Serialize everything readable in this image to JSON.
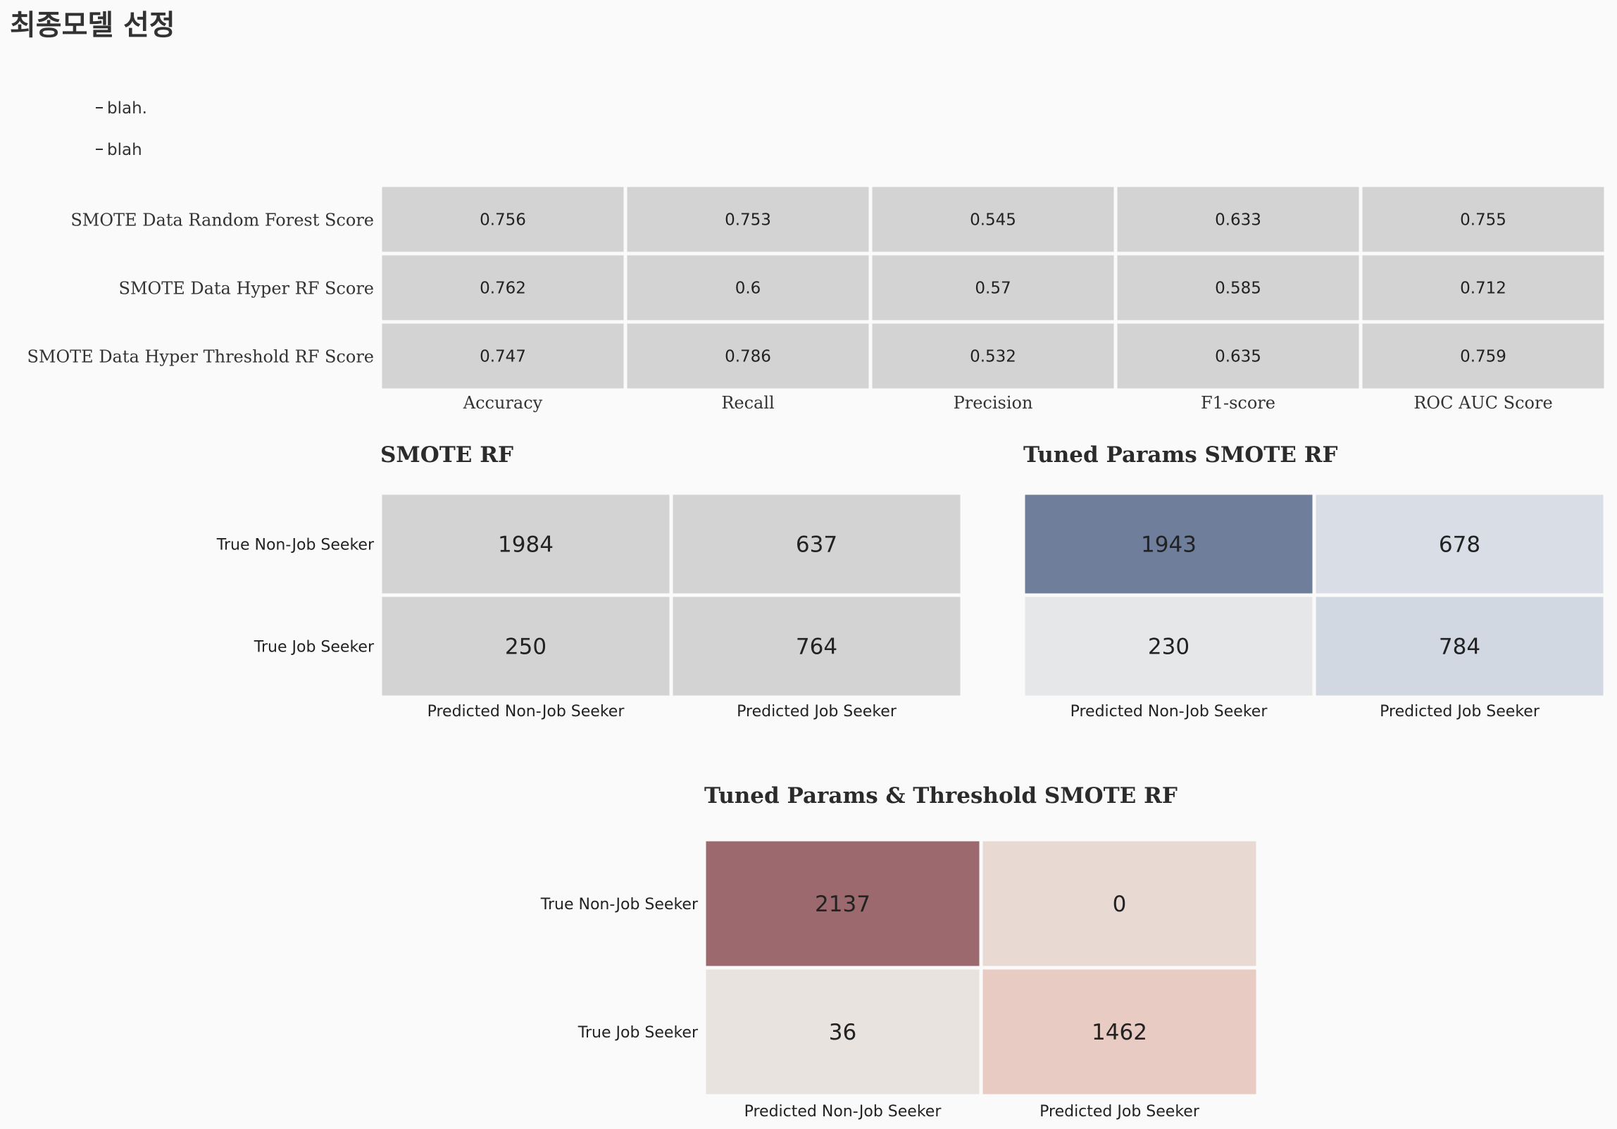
{
  "page": {
    "title": "최종모델 선정",
    "bullets": [
      "blah.",
      "blah"
    ]
  },
  "chart_data": [
    {
      "type": "table",
      "rows": [
        "SMOTE Data Random Forest Score",
        "SMOTE Data Hyper RF Score",
        "SMOTE Data Hyper Threshold RF Score"
      ],
      "columns": [
        "Accuracy",
        "Recall",
        "Precision",
        "F1-score",
        "ROC AUC Score"
      ],
      "values": [
        [
          "0.756",
          "0.753",
          "0.545",
          "0.633",
          "0.755"
        ],
        [
          "0.762",
          "0.6",
          "0.57",
          "0.585",
          "0.712"
        ],
        [
          "0.747",
          "0.786",
          "0.532",
          "0.635",
          "0.759"
        ]
      ],
      "cell_color": "#d3d3d3"
    },
    {
      "type": "heatmap",
      "title": "SMOTE RF",
      "rows": [
        "True Non-Job Seeker",
        "True Job Seeker"
      ],
      "columns": [
        "Predicted Non-Job Seeker",
        "Predicted Job Seeker"
      ],
      "values": [
        [
          1984,
          637
        ],
        [
          250,
          764
        ]
      ],
      "colors": [
        [
          "#d3d3d3",
          "#d3d3d3"
        ],
        [
          "#d3d3d3",
          "#d3d3d3"
        ]
      ]
    },
    {
      "type": "heatmap",
      "title": "Tuned Params SMOTE RF",
      "rows": [
        "True Non-Job Seeker",
        "True Job Seeker"
      ],
      "columns": [
        "Predicted Non-Job Seeker",
        "Predicted Job Seeker"
      ],
      "values": [
        [
          1943,
          678
        ],
        [
          230,
          784
        ]
      ],
      "colors": [
        [
          "#6f7f9b",
          "#d9dee6"
        ],
        [
          "#e6e7e8",
          "#d1d8e2"
        ]
      ]
    },
    {
      "type": "heatmap",
      "title": "Tuned Params & Threshold SMOTE RF",
      "rows": [
        "True Non-Job Seeker",
        "True Job Seeker"
      ],
      "columns": [
        "Predicted Non-Job Seeker",
        "Predicted Job Seeker"
      ],
      "values": [
        [
          2137,
          0
        ],
        [
          36,
          1462
        ]
      ],
      "colors": [
        [
          "#9c6a6e",
          "#e8d9d3"
        ],
        [
          "#e9e3e0",
          "#e8cbc2"
        ]
      ]
    }
  ]
}
